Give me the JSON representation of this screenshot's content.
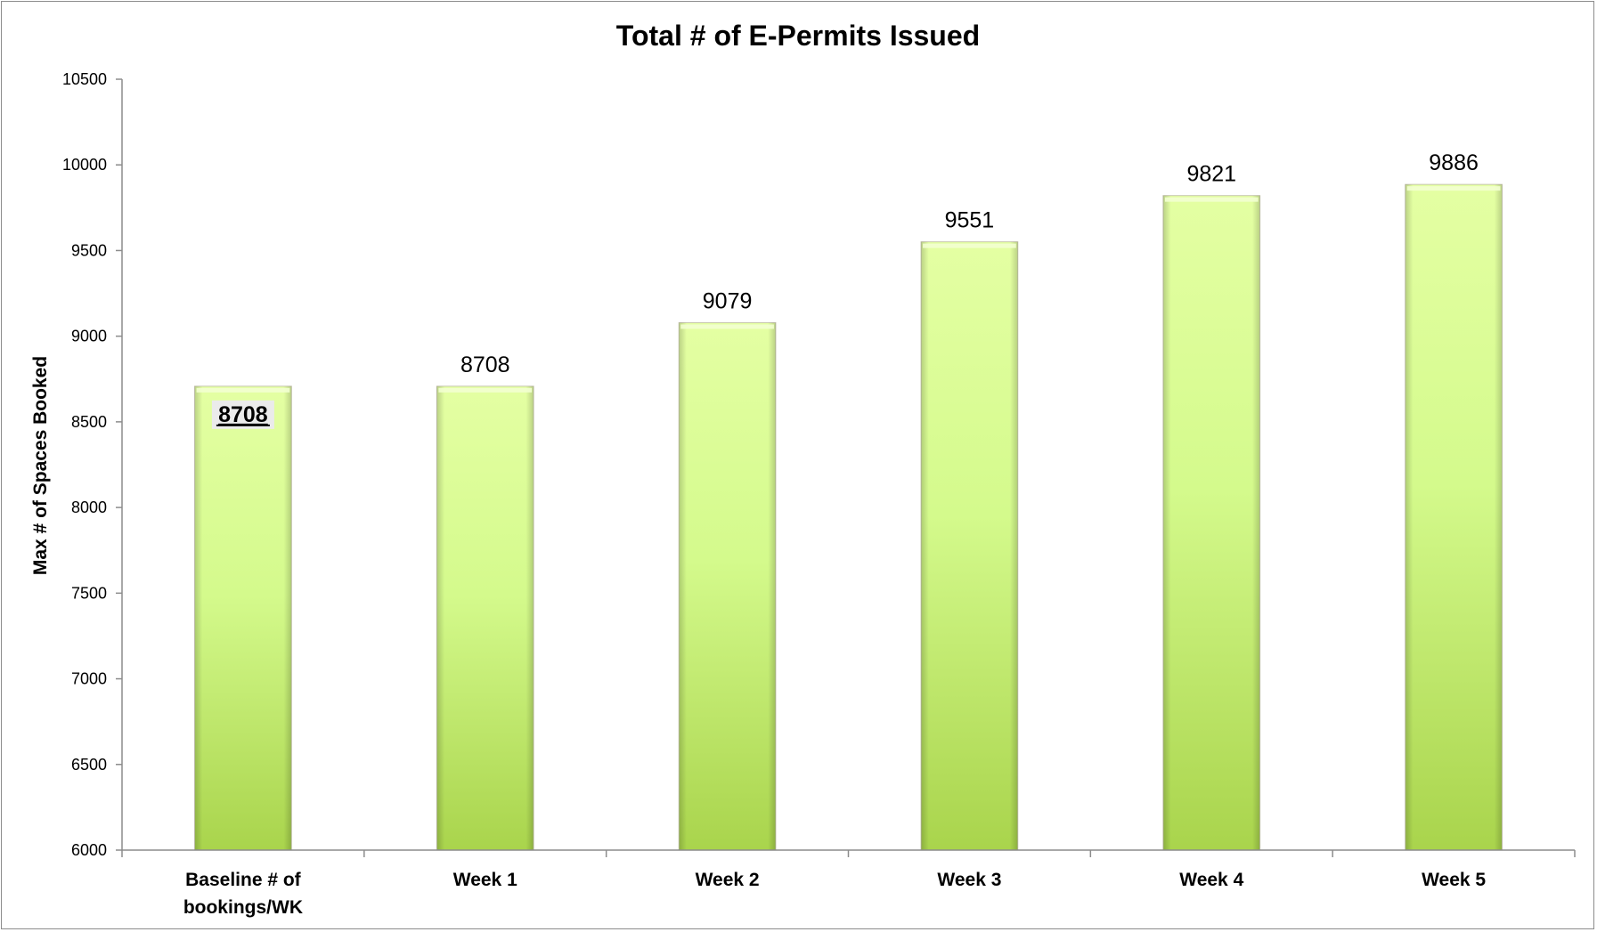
{
  "chart_data": {
    "type": "bar",
    "title": "Total # of E-Permits Issued",
    "xlabel": "",
    "ylabel": "Max # of Spaces Booked",
    "categories": [
      [
        "Baseline # of",
        "bookings/WK"
      ],
      [
        "Week 1"
      ],
      [
        "Week 2"
      ],
      [
        "Week 3"
      ],
      [
        "Week 4"
      ],
      [
        "Week 5"
      ]
    ],
    "values": [
      8708,
      8708,
      9079,
      9551,
      9821,
      9886
    ],
    "data_labels": [
      "8708",
      "8708",
      "9079",
      "9551",
      "9821",
      "9886"
    ],
    "highlighted_label_index": 0,
    "ylim": [
      6000,
      10500
    ],
    "yticks": [
      "6000",
      "6500",
      "7000",
      "7500",
      "8000",
      "8500",
      "9000",
      "9500",
      "10000",
      "10500"
    ],
    "grid": false,
    "legend": "none",
    "colors": {
      "bar_top": "#e4ffa3",
      "bar_mid": "#d4fa8c",
      "bar_bottom": "#a9d44c",
      "bar_edge": "#c9c9b0",
      "axis": "#8c8c8c",
      "label_box": "#ebebeb"
    }
  }
}
